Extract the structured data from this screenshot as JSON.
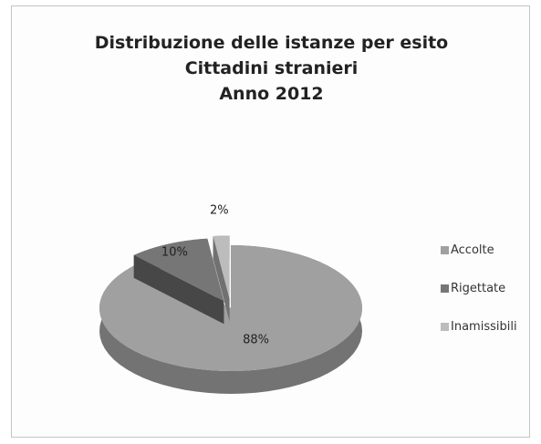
{
  "chart_data": {
    "type": "pie",
    "title_lines": [
      "Distribuzione delle istanze per esito",
      "Cittadini stranieri",
      "Anno 2012"
    ],
    "categories": [
      "Accolte",
      "Rigettate",
      "Inamissibili"
    ],
    "values": [
      88,
      10,
      2
    ],
    "data_labels": [
      "88%",
      "10%",
      "2%"
    ],
    "colors": {
      "Accolte": "#a0a0a0",
      "Rigettate": "#767676",
      "Inamissibili": "#bcbcbc"
    },
    "exploded": true,
    "three_d": true,
    "legend_position": "right"
  }
}
